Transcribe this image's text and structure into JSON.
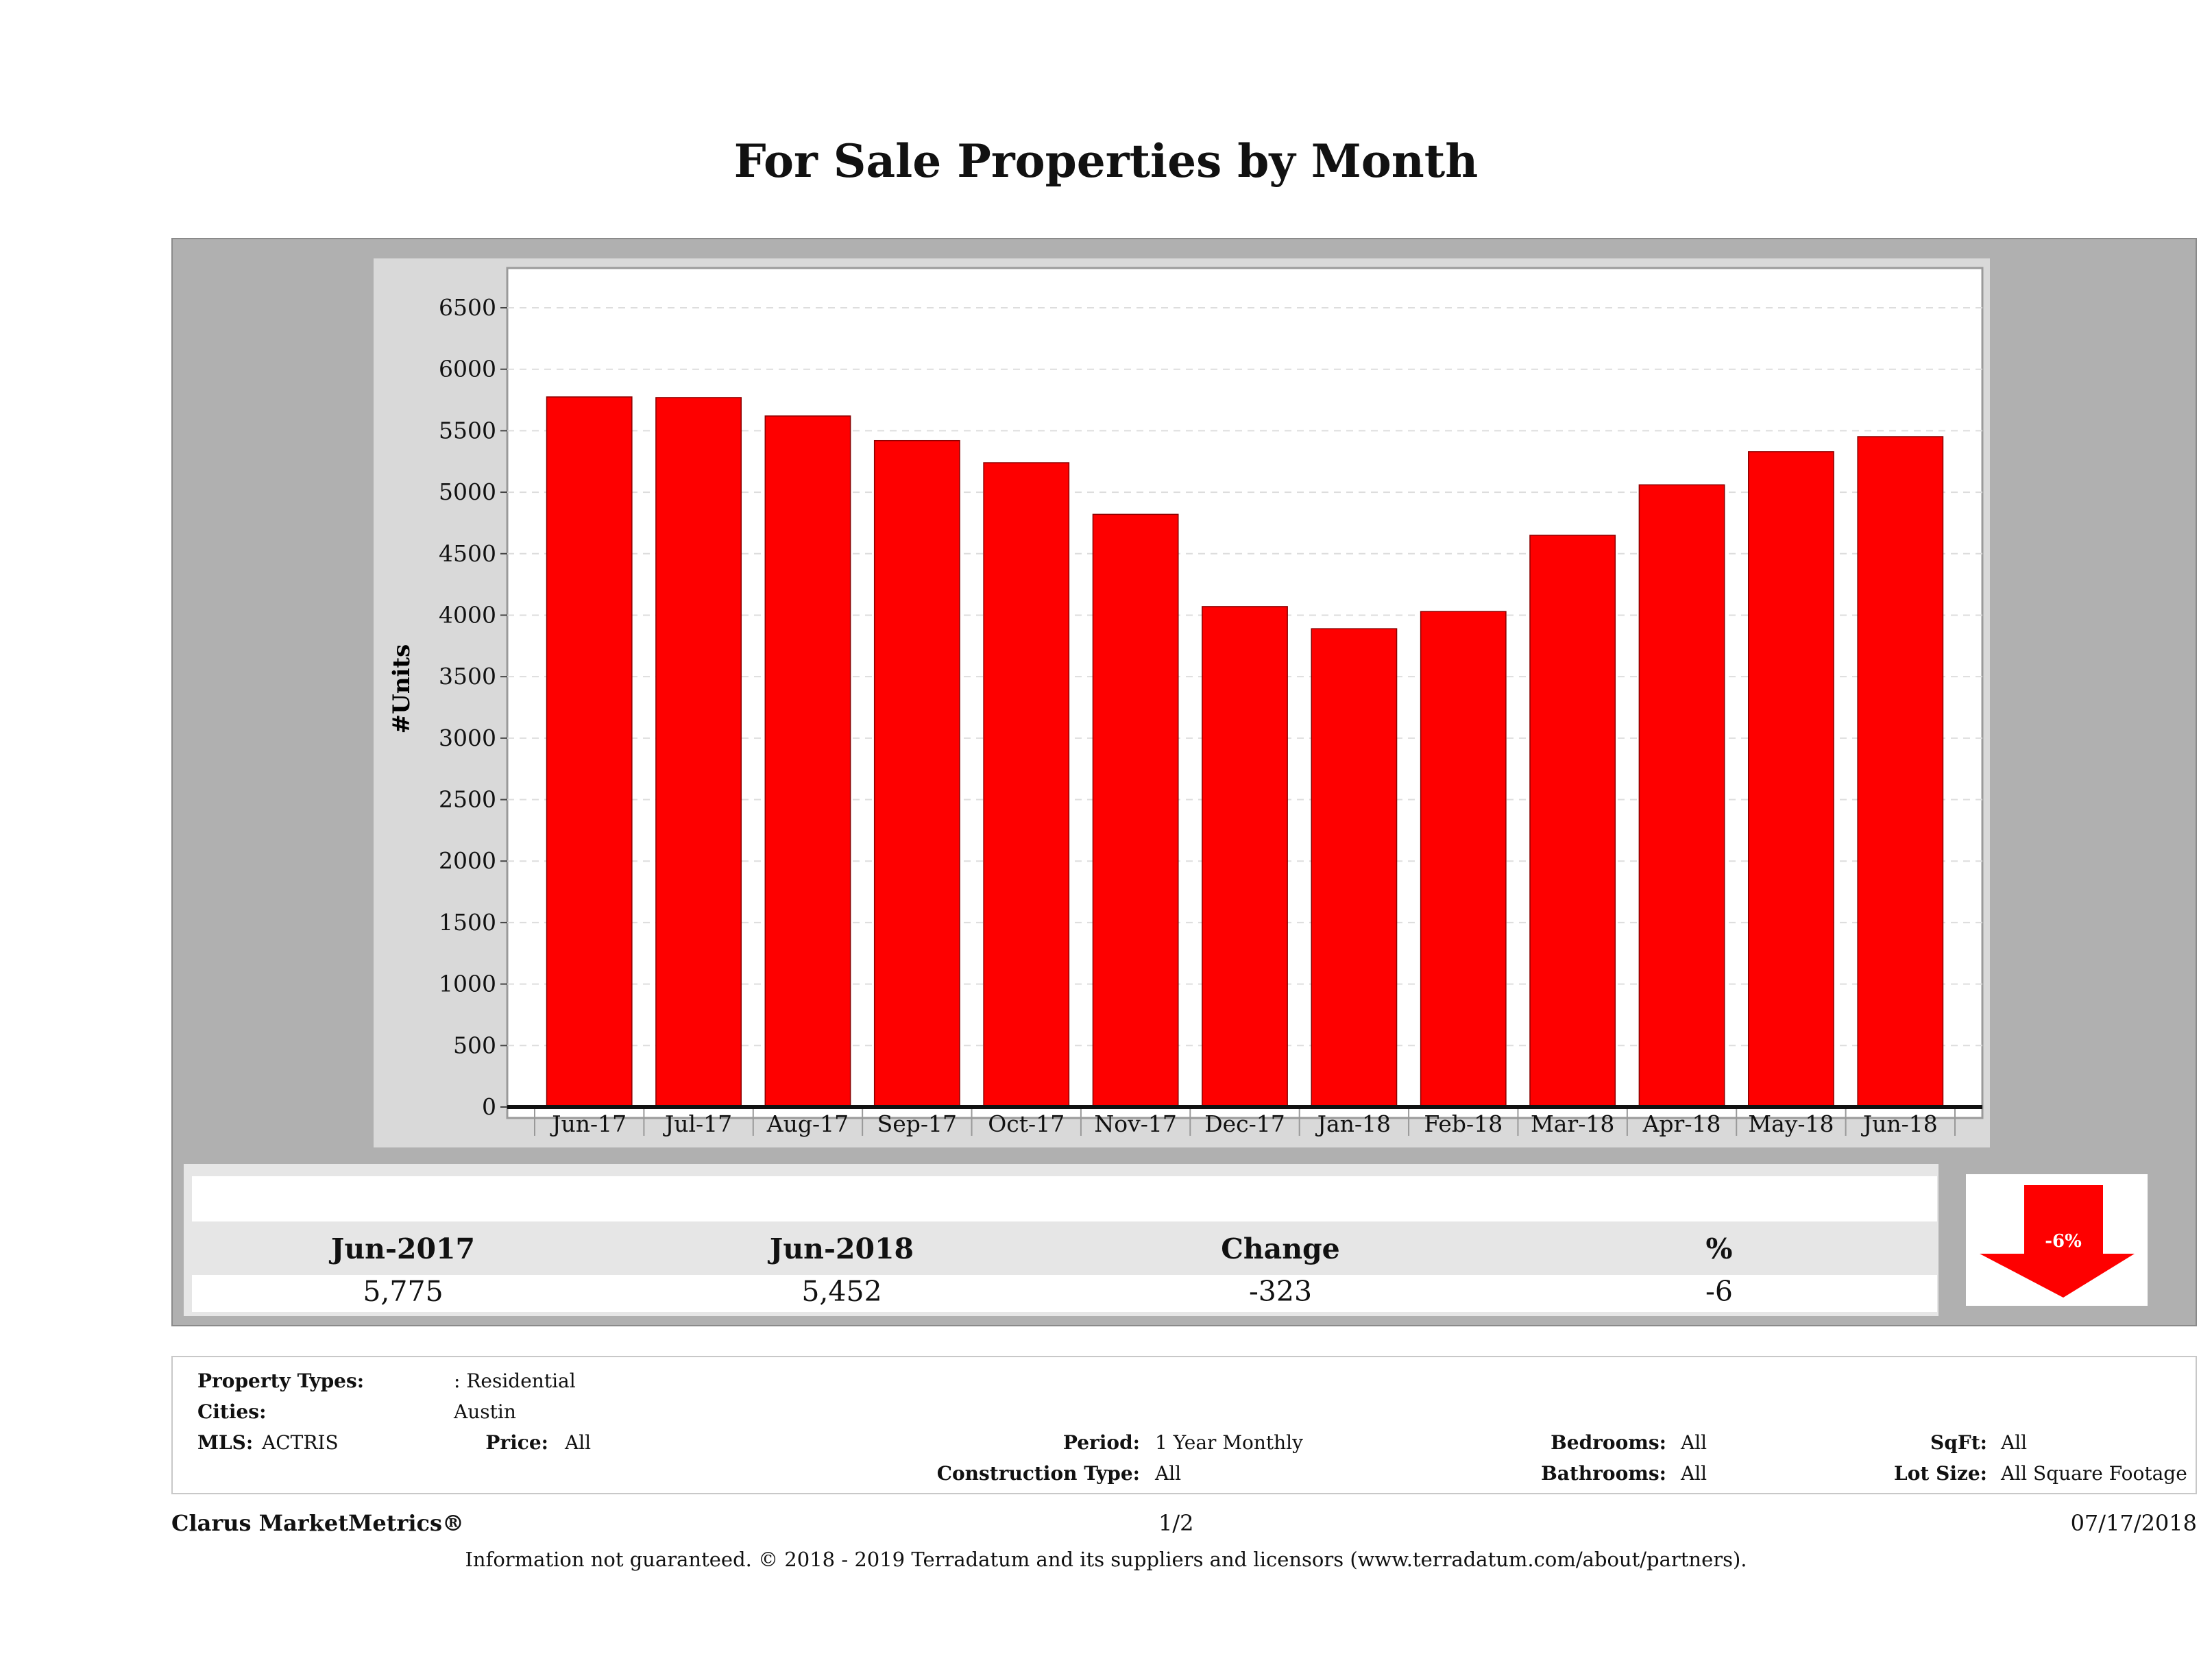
{
  "title": "For Sale Properties by Month",
  "chart_data": {
    "type": "bar",
    "title": "For Sale Properties by Month",
    "ylabel": "#Units",
    "xlabel": "",
    "categories": [
      "Jun-17",
      "Jul-17",
      "Aug-17",
      "Sep-17",
      "Oct-17",
      "Nov-17",
      "Dec-17",
      "Jan-18",
      "Feb-18",
      "Mar-18",
      "Apr-18",
      "May-18",
      "Jun-18"
    ],
    "values": [
      5775,
      5770,
      5620,
      5420,
      5240,
      4820,
      4070,
      3890,
      4030,
      4650,
      5060,
      5330,
      5452
    ],
    "ylim": [
      0,
      6900
    ],
    "yticks": [
      0,
      500,
      1000,
      1500,
      2000,
      2500,
      3000,
      3500,
      4000,
      4500,
      5000,
      5500,
      6000,
      6500
    ],
    "grid": true,
    "bar_color": "#fe0000"
  },
  "summary": {
    "headers": [
      "Jun-2017",
      "Jun-2018",
      "Change",
      "%"
    ],
    "values": [
      "5,775",
      "5,452",
      "-323",
      "-6"
    ],
    "badge": "-6%",
    "arrow_color": "#fe0000"
  },
  "criteria": {
    "property_types_label": "Property Types:",
    "property_types_value": ": Residential",
    "cities_label": "Cities:",
    "cities_value": "Austin",
    "mls_label": "MLS:",
    "mls_value": "ACTRIS",
    "price_label": "Price:",
    "price_value": "All",
    "period_label": "Period:",
    "period_value": "1 Year Monthly",
    "construction_label": "Construction Type:",
    "construction_value": "All",
    "bedrooms_label": "Bedrooms:",
    "bedrooms_value": "All",
    "bathrooms_label": "Bathrooms:",
    "bathrooms_value": "All",
    "sqft_label": "SqFt:",
    "sqft_value": "All",
    "lotsize_label": "Lot Size:",
    "lotsize_value": "All Square Footage"
  },
  "footer": {
    "brand": "Clarus MarketMetrics®",
    "page": "1/2",
    "date": "07/17/2018",
    "disclaimer": "Information not guaranteed. © 2018 - 2019 Terradatum and its suppliers and licensors (www.terradatum.com/about/partners)."
  }
}
